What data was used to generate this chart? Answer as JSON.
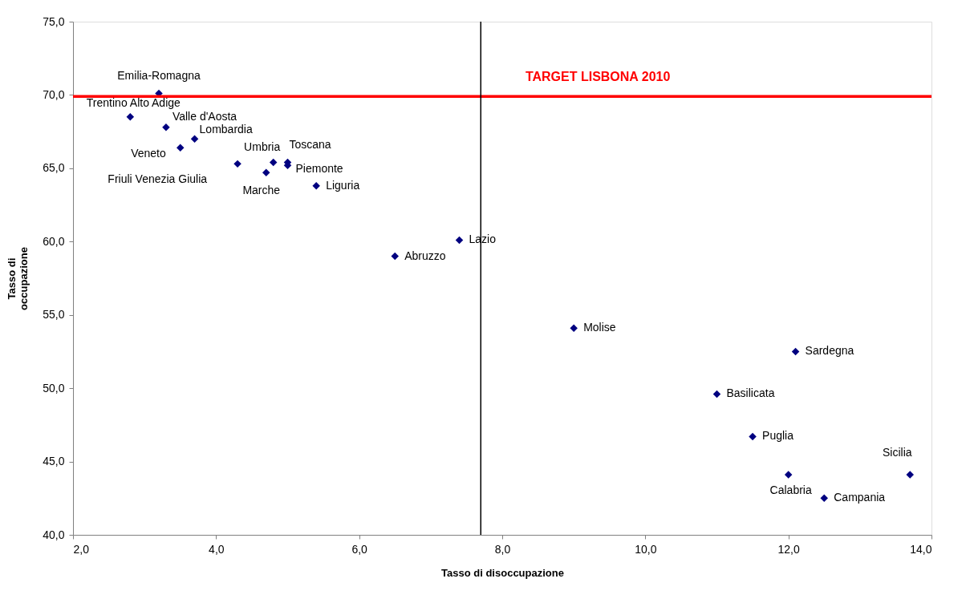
{
  "chart_data": {
    "type": "scatter",
    "xlabel": "Tasso di disoccupazione",
    "ylabel": "Tasso di\noccupazione",
    "series": [
      {
        "color": "#000080",
        "x": [
          3.2,
          2.8,
          3.3,
          3.7,
          3.5,
          4.3,
          4.8,
          5.0,
          5.0,
          4.7,
          5.4,
          7.4,
          6.5,
          9.0,
          12.1,
          11.0,
          11.5,
          12.0,
          12.5,
          13.7
        ],
        "values": [
          70.1,
          68.5,
          67.8,
          67.0,
          66.4,
          65.3,
          65.4,
          65.4,
          65.2,
          64.7,
          63.8,
          60.1,
          59.0,
          54.1,
          52.5,
          49.6,
          46.7,
          44.1,
          42.5,
          44.1
        ]
      }
    ],
    "annotations": [
      {
        "text": "Emilia-Romagna",
        "x": 3.2,
        "y": 70.1
      },
      {
        "text": "Trentino Alto Adige",
        "x": 2.8,
        "y": 68.5
      },
      {
        "text": "Valle d'Aosta",
        "x": 3.3,
        "y": 67.8
      },
      {
        "text": "Lombardia",
        "x": 3.7,
        "y": 67.0
      },
      {
        "text": "Veneto",
        "x": 3.5,
        "y": 66.4
      },
      {
        "text": "Friuli Venezia Giulia",
        "x": 4.3,
        "y": 65.3
      },
      {
        "text": "Umbria",
        "x": 4.8,
        "y": 65.4
      },
      {
        "text": "Toscana",
        "x": 5.0,
        "y": 65.4
      },
      {
        "text": "Piemonte",
        "x": 5.0,
        "y": 65.2
      },
      {
        "text": "Marche",
        "x": 4.7,
        "y": 64.7
      },
      {
        "text": "Liguria",
        "x": 5.4,
        "y": 63.8
      },
      {
        "text": "Lazio",
        "x": 7.4,
        "y": 60.1
      },
      {
        "text": "Abruzzo",
        "x": 6.5,
        "y": 59.0
      },
      {
        "text": "Molise",
        "x": 9.0,
        "y": 54.1
      },
      {
        "text": "Sardegna",
        "x": 12.1,
        "y": 52.5
      },
      {
        "text": "Basilicata",
        "x": 11.0,
        "y": 49.6
      },
      {
        "text": "Puglia",
        "x": 11.5,
        "y": 46.7
      },
      {
        "text": "Calabria",
        "x": 12.0,
        "y": 44.1
      },
      {
        "text": "Campania",
        "x": 12.5,
        "y": 42.5
      },
      {
        "text": "Sicilia",
        "x": 13.7,
        "y": 44.1
      }
    ],
    "ref_lines": [
      {
        "axis": "y",
        "value": 69.9,
        "label": "TARGET LISBONA 2010",
        "color": "#ff0000"
      },
      {
        "axis": "x",
        "value": 7.7,
        "color": "#000000"
      }
    ],
    "xlim": [
      2.0,
      14.0
    ],
    "ylim": [
      40.0,
      75.0
    ],
    "xticks": [
      {
        "value": 2,
        "label": "2,0"
      },
      {
        "value": 4,
        "label": "4,0"
      },
      {
        "value": 6,
        "label": "6,0"
      },
      {
        "value": 8,
        "label": "8,0"
      },
      {
        "value": 10,
        "label": "10,0"
      },
      {
        "value": 12,
        "label": "12,0"
      },
      {
        "value": 14,
        "label": "14,0"
      }
    ],
    "yticks": [
      {
        "value": 40,
        "label": "40,0"
      },
      {
        "value": 45,
        "label": "45,0"
      },
      {
        "value": 50,
        "label": "50,0"
      },
      {
        "value": 55,
        "label": "55,0"
      },
      {
        "value": 60,
        "label": "60,0"
      },
      {
        "value": 65,
        "label": "65,0"
      },
      {
        "value": 70,
        "label": "70,0"
      },
      {
        "value": 75,
        "label": "75,0"
      }
    ],
    "marker": "diamond",
    "grid": false
  }
}
